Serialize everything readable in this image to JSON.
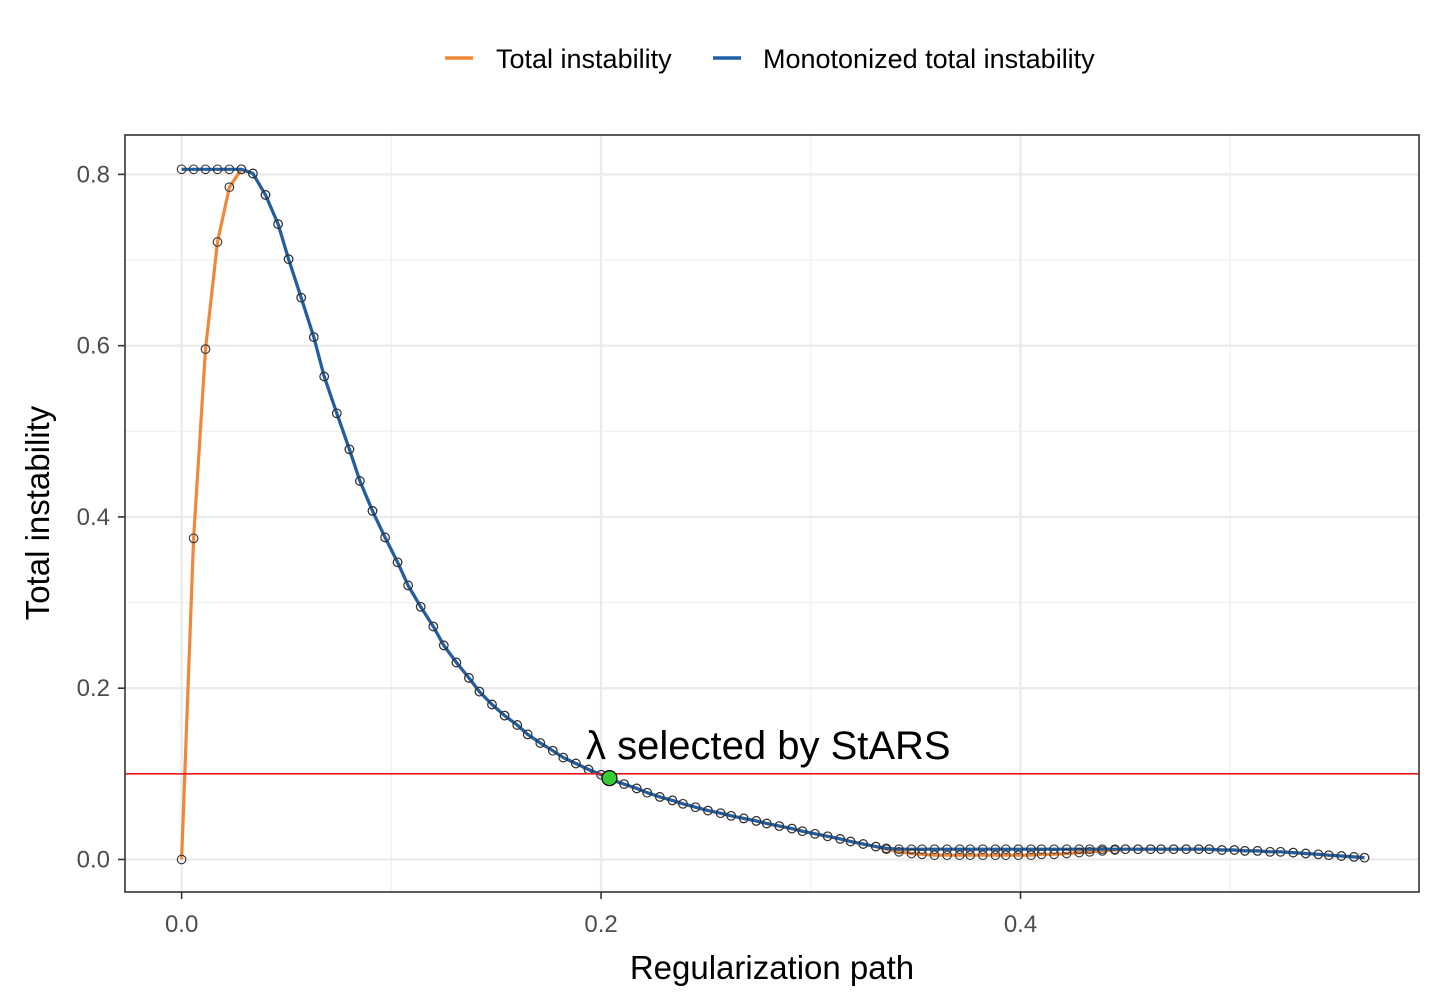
{
  "chart_data": {
    "type": "line",
    "xlabel": "Regularization path",
    "ylabel": "Total instability",
    "xlim": [
      -0.027,
      0.59
    ],
    "ylim": [
      -0.038,
      0.846
    ],
    "x_ticks": [
      0.0,
      0.2,
      0.4
    ],
    "x_tick_labels": [
      "0.0",
      "0.2",
      "0.4"
    ],
    "y_ticks": [
      0.0,
      0.2,
      0.4,
      0.6,
      0.8
    ],
    "y_tick_labels": [
      "0.0",
      "0.2",
      "0.4",
      "0.6",
      "0.8"
    ],
    "grid": true,
    "legend_position": "top",
    "threshold": 0.1,
    "threshold_color": "#e41a1c",
    "selected_point": {
      "x": 0.204,
      "y": 0.095,
      "color": "#33cc33"
    },
    "annotation": "λ selected by StARS",
    "series": [
      {
        "name": "Total instability",
        "color": "#f0883a",
        "x": [
          0.0,
          0.0057,
          0.0114,
          0.0171,
          0.0228,
          0.0285,
          0.034,
          0.04,
          0.046,
          0.051,
          0.057,
          0.063,
          0.068,
          0.074,
          0.08,
          0.085,
          0.091,
          0.097,
          0.103,
          0.108,
          0.114,
          0.12,
          0.125,
          0.131,
          0.137,
          0.142,
          0.148,
          0.154,
          0.16,
          0.165,
          0.171,
          0.177,
          0.182,
          0.188,
          0.194,
          0.2,
          0.205,
          0.211,
          0.217,
          0.222,
          0.228,
          0.234,
          0.239,
          0.245,
          0.251,
          0.257,
          0.262,
          0.268,
          0.274,
          0.279,
          0.285,
          0.291,
          0.296,
          0.302,
          0.308,
          0.314,
          0.319,
          0.325,
          0.331,
          0.336,
          0.342,
          0.348,
          0.353,
          0.359,
          0.365,
          0.371,
          0.376,
          0.382,
          0.388,
          0.393,
          0.399,
          0.405,
          0.41,
          0.416,
          0.422,
          0.428,
          0.433,
          0.439,
          0.445,
          0.45,
          0.456,
          0.462,
          0.467,
          0.473,
          0.479,
          0.485,
          0.49,
          0.496,
          0.502,
          0.507,
          0.513,
          0.519,
          0.524,
          0.53,
          0.536,
          0.542,
          0.547,
          0.553,
          0.559,
          0.564
        ],
        "y": [
          0.0,
          0.375,
          0.596,
          0.721,
          0.785,
          0.806,
          0.801,
          0.776,
          0.742,
          0.701,
          0.656,
          0.61,
          0.564,
          0.521,
          0.479,
          0.442,
          0.407,
          0.376,
          0.347,
          0.32,
          0.295,
          0.272,
          0.25,
          0.23,
          0.212,
          0.196,
          0.181,
          0.168,
          0.157,
          0.146,
          0.136,
          0.127,
          0.119,
          0.112,
          0.105,
          0.099,
          0.093,
          0.088,
          0.083,
          0.078,
          0.073,
          0.069,
          0.065,
          0.061,
          0.057,
          0.054,
          0.051,
          0.048,
          0.045,
          0.042,
          0.039,
          0.036,
          0.033,
          0.03,
          0.027,
          0.024,
          0.021,
          0.018,
          0.015,
          0.012,
          0.009,
          0.007,
          0.006,
          0.005,
          0.005,
          0.005,
          0.005,
          0.005,
          0.005,
          0.005,
          0.005,
          0.005,
          0.006,
          0.006,
          0.007,
          0.008,
          0.009,
          0.01,
          0.011,
          0.012,
          0.012,
          0.012,
          0.012,
          0.012,
          0.012,
          0.012,
          0.012,
          0.011,
          0.011,
          0.01,
          0.01,
          0.009,
          0.009,
          0.008,
          0.007,
          0.006,
          0.005,
          0.004,
          0.003,
          0.002
        ]
      },
      {
        "name": "Monotonized total instability",
        "color": "#1f5fa6",
        "x": [
          0.0,
          0.0057,
          0.0114,
          0.0171,
          0.0228,
          0.0285,
          0.034,
          0.04,
          0.046,
          0.051,
          0.057,
          0.063,
          0.068,
          0.074,
          0.08,
          0.085,
          0.091,
          0.097,
          0.103,
          0.108,
          0.114,
          0.12,
          0.125,
          0.131,
          0.137,
          0.142,
          0.148,
          0.154,
          0.16,
          0.165,
          0.171,
          0.177,
          0.182,
          0.188,
          0.194,
          0.2,
          0.205,
          0.211,
          0.217,
          0.222,
          0.228,
          0.234,
          0.239,
          0.245,
          0.251,
          0.257,
          0.262,
          0.268,
          0.274,
          0.279,
          0.285,
          0.291,
          0.296,
          0.302,
          0.308,
          0.314,
          0.319,
          0.325,
          0.331,
          0.336,
          0.342,
          0.348,
          0.353,
          0.359,
          0.365,
          0.371,
          0.376,
          0.382,
          0.388,
          0.393,
          0.399,
          0.405,
          0.41,
          0.416,
          0.422,
          0.428,
          0.433,
          0.439,
          0.445,
          0.45,
          0.456,
          0.462,
          0.467,
          0.473,
          0.479,
          0.485,
          0.49,
          0.496,
          0.502,
          0.507,
          0.513,
          0.519,
          0.524,
          0.53,
          0.536,
          0.542,
          0.547,
          0.553,
          0.559,
          0.564
        ],
        "y": [
          0.806,
          0.806,
          0.806,
          0.806,
          0.806,
          0.806,
          0.801,
          0.776,
          0.742,
          0.701,
          0.656,
          0.61,
          0.564,
          0.521,
          0.479,
          0.442,
          0.407,
          0.376,
          0.347,
          0.32,
          0.295,
          0.272,
          0.25,
          0.23,
          0.212,
          0.196,
          0.181,
          0.168,
          0.157,
          0.146,
          0.136,
          0.127,
          0.119,
          0.112,
          0.105,
          0.099,
          0.093,
          0.088,
          0.083,
          0.078,
          0.073,
          0.069,
          0.065,
          0.061,
          0.057,
          0.054,
          0.051,
          0.048,
          0.045,
          0.042,
          0.039,
          0.036,
          0.033,
          0.03,
          0.027,
          0.024,
          0.021,
          0.018,
          0.015,
          0.013,
          0.012,
          0.012,
          0.012,
          0.012,
          0.012,
          0.012,
          0.012,
          0.012,
          0.012,
          0.012,
          0.012,
          0.012,
          0.012,
          0.012,
          0.012,
          0.012,
          0.012,
          0.012,
          0.012,
          0.012,
          0.012,
          0.012,
          0.012,
          0.012,
          0.012,
          0.012,
          0.012,
          0.011,
          0.011,
          0.01,
          0.01,
          0.009,
          0.009,
          0.008,
          0.007,
          0.006,
          0.005,
          0.004,
          0.003,
          0.002
        ]
      }
    ]
  }
}
